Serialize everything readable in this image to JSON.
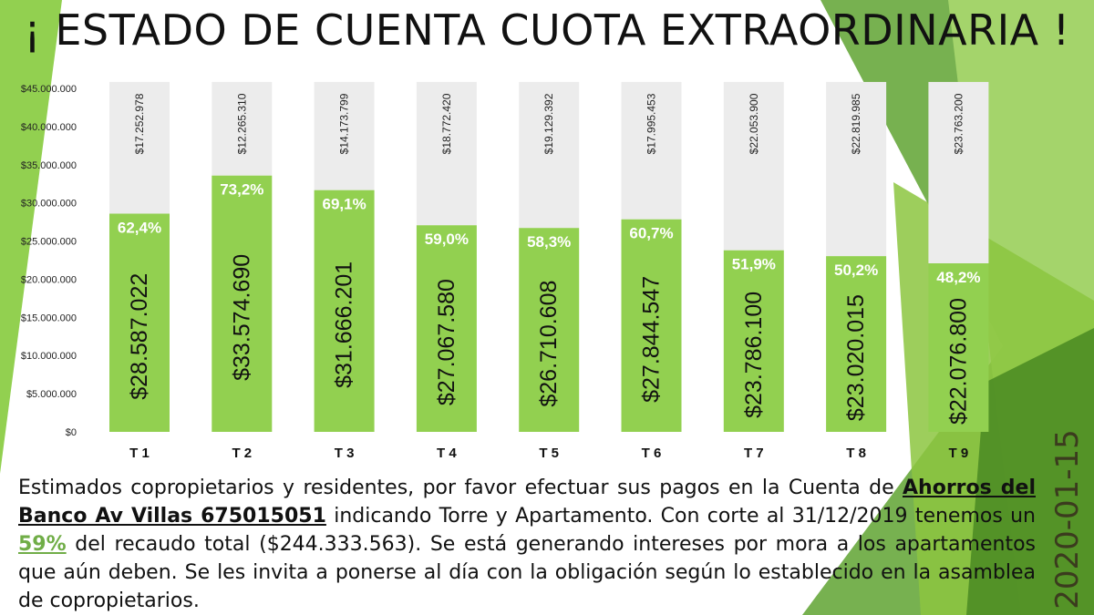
{
  "title": "¡ ESTADO DE CUENTA CUOTA EXTRAORDINARIA !",
  "message": {
    "part1": "Estimados copropietarios y residentes, por favor efectuar sus pagos en la Cuenta de ",
    "bank_account": "Ahorros del Banco Av Villas 675015051",
    "part2": " indicando Torre y Apartamento. Con corte al 31/12/2019 tenemos un ",
    "percent": "59%",
    "part3": " del recaudo total ($244.333.563). Se está generando intereses por mora a los apartamentos que aún deben. Se les invita a ponerse al día con la obligación según lo establecido en la asamblea de copropietarios."
  },
  "date_stamp": "2020-01-15",
  "colors": {
    "paid": "#92d050",
    "pending": "#ececec",
    "accent": "#70ad47",
    "deco_dark": "#5a9a2c",
    "deco_light": "#a9d86e"
  },
  "chart_data": {
    "type": "bar",
    "stacked": true,
    "categories": [
      "T 1",
      "T 2",
      "T 3",
      "T 4",
      "T 5",
      "T 6",
      "T 7",
      "T 8",
      "T 9"
    ],
    "series": [
      {
        "values": [
          28587022,
          33574690,
          31666201,
          27067580,
          26710608,
          27844547,
          23786100,
          23020015,
          22076800
        ],
        "labels": [
          "$28.587.022",
          "$33.574.690",
          "$31.666.201",
          "$27.067.580",
          "$26.710.608",
          "$27.844.547",
          "$23.786.100",
          "$23.020.015",
          "$22.076.800"
        ],
        "percent_labels": [
          "62,4%",
          "73,2%",
          "69,1%",
          "59,0%",
          "58,3%",
          "60,7%",
          "51,9%",
          "50,2%",
          "48,2%"
        ]
      },
      {
        "values": [
          17252978,
          12265310,
          14173799,
          18772420,
          19129392,
          17995453,
          22053900,
          22819985,
          23763200
        ],
        "labels": [
          "$17.252.978",
          "$12.265.310",
          "$14.173.799",
          "$18.772.420",
          "$19.129.392",
          "$17.995.453",
          "$22.053.900",
          "$22.819.985",
          "$23.763.200"
        ]
      }
    ],
    "ylim": [
      0,
      45000000
    ],
    "yticks": [
      0,
      5000000,
      10000000,
      15000000,
      20000000,
      25000000,
      30000000,
      35000000,
      40000000,
      45000000
    ],
    "ytick_labels": [
      "$0",
      "$5.000.000",
      "$10.000.000",
      "$15.000.000",
      "$20.000.000",
      "$25.000.000",
      "$30.000.000",
      "$35.000.000",
      "$40.000.000",
      "$45.000.000"
    ],
    "grid": false,
    "legend": "none"
  }
}
